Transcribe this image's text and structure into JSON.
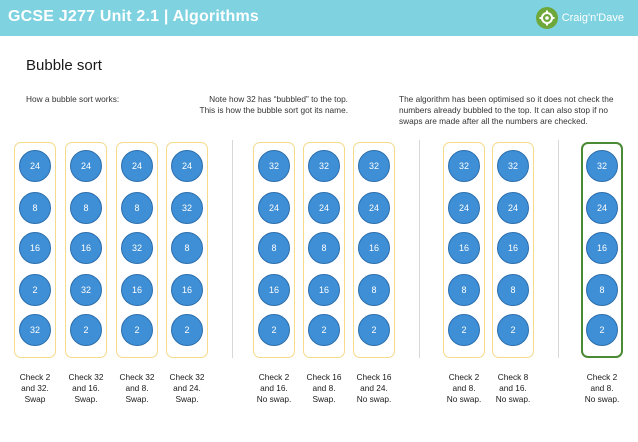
{
  "header": {
    "title": "GCSE J277 Unit 2.1 | Algorithms",
    "logo_text": "Craig'n'Dave",
    "colors": {
      "bar": "#7fd2e0",
      "logo": "#6ea83a"
    }
  },
  "page_title": "Bubble sort",
  "notes": [
    {
      "lines": [
        "How a bubble sort works:"
      ]
    },
    {
      "lines": [
        "Note how 32 has “bubbled” to the top.",
        "This is how the bubble sort got its name."
      ]
    },
    {
      "lines": [
        "The algorithm has been optimised so it does not check the",
        "numbers already bubbled to the top.  It can also stop if no",
        "swaps are made after all the numbers are checked."
      ]
    }
  ],
  "columns": [
    {
      "values": [
        "24",
        "8",
        "16",
        "2",
        "32"
      ],
      "caption": [
        "Check 2",
        "and 32.",
        "Swap"
      ],
      "final": false
    },
    {
      "values": [
        "24",
        "8",
        "16",
        "32",
        "2"
      ],
      "caption": [
        "Check 32",
        "and 16.",
        "Swap."
      ],
      "final": false
    },
    {
      "values": [
        "24",
        "8",
        "32",
        "16",
        "2"
      ],
      "caption": [
        "Check 32",
        "and 8.",
        "Swap."
      ],
      "final": false
    },
    {
      "values": [
        "24",
        "32",
        "8",
        "16",
        "2"
      ],
      "caption": [
        "Check 32",
        "and 24.",
        "Swap."
      ],
      "final": false
    },
    {
      "values": [
        "32",
        "24",
        "8",
        "16",
        "2"
      ],
      "caption": [
        "Check 2",
        "and 16.",
        "No swap."
      ],
      "final": false
    },
    {
      "values": [
        "32",
        "24",
        "8",
        "16",
        "2"
      ],
      "caption": [
        "Check 16",
        "and 8.",
        "Swap."
      ],
      "final": false
    },
    {
      "values": [
        "32",
        "24",
        "16",
        "8",
        "2"
      ],
      "caption": [
        "Check 16",
        "and 24.",
        "No swap."
      ],
      "final": false
    },
    {
      "values": [
        "32",
        "24",
        "16",
        "8",
        "2"
      ],
      "caption": [
        "Check 2",
        "and 8.",
        "No swap."
      ],
      "final": false
    },
    {
      "values": [
        "32",
        "24",
        "16",
        "8",
        "2"
      ],
      "caption": [
        "Check 8",
        "and 16.",
        "No swap."
      ],
      "final": false
    },
    {
      "values": [
        "32",
        "24",
        "16",
        "8",
        "2"
      ],
      "caption": [
        "Check 2",
        "and 8.",
        "No swap."
      ],
      "final": true
    }
  ]
}
